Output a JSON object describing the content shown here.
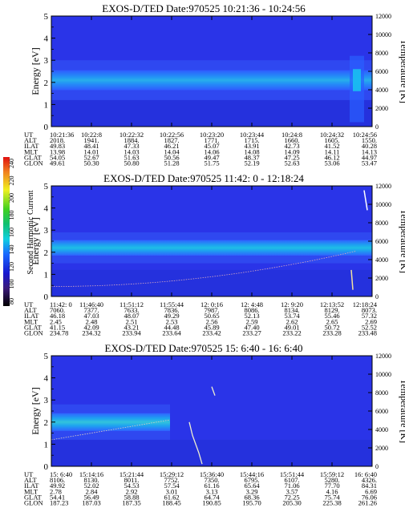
{
  "colorbar": {
    "label": "Second Harmonic Current",
    "ticks": [
      "240",
      "220",
      "200",
      "180",
      "160",
      "140",
      "120",
      "100",
      "80"
    ]
  },
  "chart_data": [
    {
      "type": "heatmap",
      "title": "EXOS-D/TED   Date:970525   10:21:36 - 10:24:56",
      "ylabel": "Energy [eV]",
      "y2label": "Temperature [K]",
      "ylim": [
        0,
        5
      ],
      "y2lim": [
        0,
        12000
      ],
      "yticks": [
        "0",
        "1",
        "2",
        "3",
        "4",
        "5"
      ],
      "y2ticks": [
        "0",
        "2000",
        "4000",
        "6000",
        "8000",
        "10000",
        "12000"
      ],
      "band": {
        "center_ev": 2.1,
        "half_width_ev": 0.45
      },
      "table": {
        "row_labels": [
          "UT",
          "ALT",
          "ILAT",
          "MLT",
          "GLAT",
          "GLON"
        ],
        "columns": [
          [
            "10:21:36",
            "2018.",
            "49.83",
            "13.98",
            "54.05",
            "49.61"
          ],
          [
            "10:22:8",
            "1941.",
            "48.41",
            "14.01",
            "52.67",
            "50.30"
          ],
          [
            "10:22:32",
            "1884.",
            "47.33",
            "14.03",
            "51.63",
            "50.80"
          ],
          [
            "10:22:56",
            "1827.",
            "46.21",
            "14.04",
            "50.56",
            "51.28"
          ],
          [
            "10:23:20",
            "1771.",
            "45.07",
            "14.06",
            "49.47",
            "51.75"
          ],
          [
            "10:23:44",
            "1715.",
            "43.91",
            "14.08",
            "48.37",
            "52.19"
          ],
          [
            "10:24:8",
            "1660.",
            "42.73",
            "14.09",
            "47.25",
            "52.63"
          ],
          [
            "10:24:32",
            "1605.",
            "41.52",
            "14.11",
            "46.12",
            "53.06"
          ],
          [
            "10:24:56",
            "1550.",
            "40.28",
            "14.13",
            "44.97",
            "53.47"
          ]
        ]
      }
    },
    {
      "type": "heatmap",
      "title": "EXOS-D/TED   Date:970525   11:42: 0 - 12:18:24",
      "ylabel": "Energy [eV]",
      "y2label": "Temperature [K]",
      "ylim": [
        0,
        5
      ],
      "y2lim": [
        0,
        12000
      ],
      "yticks": [
        "0",
        "1",
        "2",
        "3",
        "4",
        "5"
      ],
      "y2ticks": [
        "0",
        "2000",
        "4000",
        "6000",
        "8000",
        "10000",
        "12000"
      ],
      "band": {
        "center_ev": 2.2,
        "half_width_ev": 0.35
      },
      "table": {
        "row_labels": [
          "UT",
          "ALT",
          "ILAT",
          "MLT",
          "GLAT",
          "GLON"
        ],
        "columns": [
          [
            "11:42: 0",
            "7060.",
            "46.18",
            "2.45",
            "41.15",
            "234.78"
          ],
          [
            "11:46:40",
            "7377.",
            "47.03",
            "2.48",
            "42.09",
            "234.32"
          ],
          [
            "11:51:12",
            "7633.",
            "48.07",
            "2.51",
            "43.21",
            "233.94"
          ],
          [
            "11:55:44",
            "7836.",
            "49.29",
            "2.53",
            "44.48",
            "233.64"
          ],
          [
            "12: 0:16",
            "7987.",
            "50.65",
            "2.56",
            "45.89",
            "233.42"
          ],
          [
            "12: 4:48",
            "8086.",
            "52.13",
            "2.59",
            "47.40",
            "233.27"
          ],
          [
            "12: 9:20",
            "8134.",
            "53.74",
            "2.62",
            "49.01",
            "233.22"
          ],
          [
            "12:13:52",
            "8129.",
            "55.46",
            "2.65",
            "50.72",
            "233.28"
          ],
          [
            "12:18:24",
            "8073.",
            "57.32",
            "2.69",
            "52.52",
            "233.48"
          ]
        ]
      }
    },
    {
      "type": "heatmap",
      "title": "EXOS-D/TED   Date:970525   15: 6:40 - 16: 6:40",
      "ylabel": "Energy [eV]",
      "y2label": "Temperature [K]",
      "ylim": [
        0,
        5
      ],
      "y2lim": [
        0,
        12000
      ],
      "yticks": [
        "0",
        "1",
        "2",
        "3",
        "4",
        "5"
      ],
      "y2ticks": [
        "0",
        "2000",
        "4000",
        "6000",
        "8000",
        "10000",
        "12000"
      ],
      "band": {
        "center_ev": 2.0,
        "half_width_ev": 0.4
      },
      "table": {
        "row_labels": [
          "UT",
          "ALT",
          "ILAT",
          "MLT",
          "GLAT",
          "GLON"
        ],
        "columns": [
          [
            "15: 6:40",
            "8106.",
            "49.92",
            "2.78",
            "54.41",
            "187.23"
          ],
          [
            "15:14:16",
            "8130.",
            "52.02",
            "2.84",
            "56.49",
            "187.03"
          ],
          [
            "15:21:44",
            "8011.",
            "54.53",
            "2.92",
            "58.88",
            "187.35"
          ],
          [
            "15:29:12",
            "7752.",
            "57.54",
            "3.01",
            "61.62",
            "188.45"
          ],
          [
            "15:36:40",
            "7350.",
            "61.16",
            "3.13",
            "64.74",
            "190.85"
          ],
          [
            "15:44:16",
            "6795.",
            "65.64",
            "3.29",
            "68.36",
            "195.70"
          ],
          [
            "15:51:44",
            "6107.",
            "71.06",
            "3.57",
            "72.25",
            "205.30"
          ],
          [
            "15:59:12",
            "5280.",
            "77.70",
            "4.16",
            "75.74",
            "225.38"
          ],
          [
            "16: 6:40",
            "4326.",
            "84.31",
            "6.69",
            "76.06",
            "261.26"
          ]
        ]
      }
    }
  ]
}
